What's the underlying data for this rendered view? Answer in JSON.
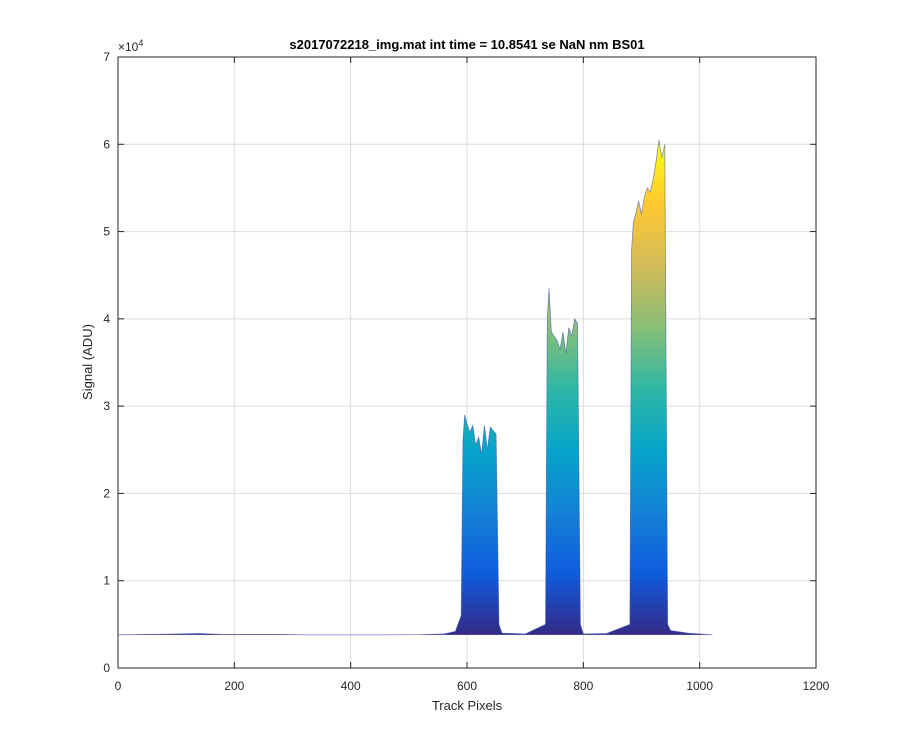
{
  "chart_data": {
    "type": "area",
    "title": "s2017072218_img.mat int time = 10.8541 se  NaN nm BS01",
    "xlabel": "Track Pixels",
    "ylabel": "Signal (ADU)",
    "xlim": [
      0,
      1200
    ],
    "ylim": [
      0,
      70000
    ],
    "xticks": [
      0,
      200,
      400,
      600,
      800,
      1000,
      1200
    ],
    "xtick_labels": [
      "0",
      "200",
      "400",
      "600",
      "800",
      "1000",
      "1200"
    ],
    "yticks": [
      0,
      10000,
      20000,
      30000,
      40000,
      50000,
      60000,
      70000
    ],
    "ytick_labels": [
      "0",
      "1",
      "2",
      "3",
      "4",
      "5",
      "6",
      "7"
    ],
    "y_exponent_base": "×10",
    "y_exponent_power": "4",
    "grid": true,
    "colormap": "parula",
    "colormap_colors": [
      "#352a87",
      "#0f5cdd",
      "#1481d6",
      "#06a4ca",
      "#2eb7a4",
      "#87bf77",
      "#d1bb59",
      "#fec832",
      "#f9fb0e"
    ],
    "baseline": 3800,
    "series": [
      {
        "x": [
          0,
          50,
          100,
          140,
          180,
          220,
          280,
          320,
          380,
          450,
          520,
          560,
          580,
          590,
          593,
          596,
          600,
          605,
          610,
          615,
          620,
          625,
          630,
          635,
          640,
          645,
          650,
          655,
          660,
          700,
          735,
          738,
          741,
          745,
          750,
          755,
          760,
          765,
          770,
          775,
          780,
          785,
          790,
          795,
          800,
          840,
          880,
          883,
          886,
          890,
          895,
          900,
          905,
          910,
          915,
          920,
          925,
          930,
          935,
          940,
          945,
          950,
          980,
          1022
        ],
        "y": [
          3800,
          3850,
          3900,
          3950,
          3850,
          3850,
          3850,
          3800,
          3800,
          3800,
          3820,
          3900,
          4200,
          6000,
          26000,
          29000,
          28000,
          27000,
          27800,
          25500,
          26500,
          24500,
          27800,
          25000,
          27600,
          27200,
          26800,
          5000,
          4000,
          3900,
          5000,
          40000,
          43500,
          38500,
          38000,
          37500,
          36500,
          38500,
          36000,
          39000,
          38000,
          40000,
          39500,
          5000,
          3900,
          3950,
          5000,
          48000,
          51000,
          52000,
          53500,
          52000,
          54000,
          55000,
          54500,
          56000,
          58000,
          60500,
          58500,
          60000,
          5000,
          4300,
          4000,
          3800
        ]
      }
    ]
  }
}
